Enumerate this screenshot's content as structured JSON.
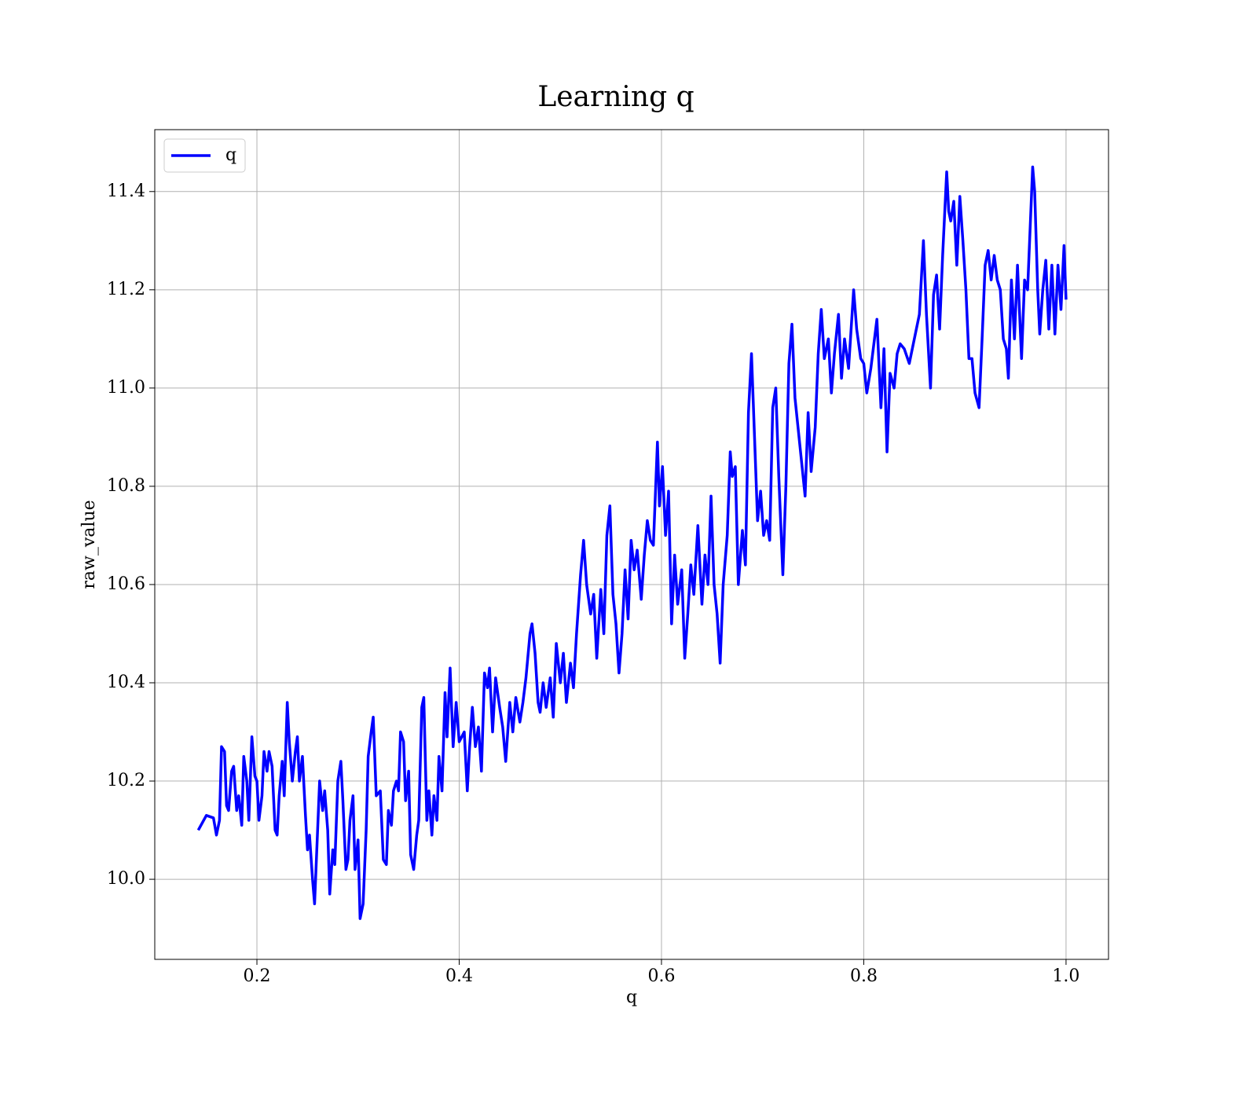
{
  "chart_data": {
    "type": "line",
    "title": "Learning q",
    "xlabel": "q",
    "ylabel": "raw_value",
    "xlim": [
      0.099,
      1.042
    ],
    "ylim": [
      9.837,
      11.526
    ],
    "xticks": [
      0.2,
      0.4,
      0.6,
      0.8,
      {
        "value": 1.0,
        "label": "1.0"
      }
    ],
    "yticks": [
      {
        "value": 10.0,
        "label": "10.0"
      },
      10.2,
      10.4,
      10.6,
      10.8,
      {
        "value": 11.0,
        "label": "11.0"
      },
      11.2,
      11.4
    ],
    "grid": true,
    "legend": "upper left",
    "x": [
      0.142,
      0.15,
      0.157,
      0.16,
      0.163,
      0.165,
      0.168,
      0.17,
      0.172,
      0.175,
      0.177,
      0.18,
      0.182,
      0.185,
      0.187,
      0.19,
      0.192,
      0.195,
      0.198,
      0.2,
      0.202,
      0.205,
      0.207,
      0.21,
      0.212,
      0.215,
      0.218,
      0.22,
      0.222,
      0.225,
      0.227,
      0.23,
      0.232,
      0.235,
      0.238,
      0.24,
      0.242,
      0.245,
      0.248,
      0.25,
      0.252,
      0.255,
      0.257,
      0.26,
      0.262,
      0.265,
      0.267,
      0.27,
      0.272,
      0.275,
      0.277,
      0.28,
      0.283,
      0.285,
      0.288,
      0.29,
      0.292,
      0.295,
      0.297,
      0.3,
      0.302,
      0.305,
      0.308,
      0.31,
      0.313,
      0.315,
      0.318,
      0.322,
      0.325,
      0.328,
      0.33,
      0.333,
      0.335,
      0.338,
      0.34,
      0.342,
      0.345,
      0.347,
      0.35,
      0.352,
      0.355,
      0.358,
      0.36,
      0.363,
      0.365,
      0.368,
      0.37,
      0.373,
      0.375,
      0.378,
      0.38,
      0.383,
      0.386,
      0.388,
      0.391,
      0.394,
      0.397,
      0.4,
      0.405,
      0.408,
      0.41,
      0.413,
      0.416,
      0.419,
      0.422,
      0.425,
      0.428,
      0.43,
      0.433,
      0.436,
      0.44,
      0.443,
      0.446,
      0.45,
      0.453,
      0.456,
      0.46,
      0.463,
      0.466,
      0.47,
      0.472,
      0.475,
      0.478,
      0.48,
      0.483,
      0.486,
      0.49,
      0.493,
      0.496,
      0.5,
      0.503,
      0.506,
      0.51,
      0.513,
      0.516,
      0.52,
      0.523,
      0.526,
      0.53,
      0.533,
      0.536,
      0.54,
      0.543,
      0.546,
      0.549,
      0.552,
      0.555,
      0.558,
      0.561,
      0.564,
      0.567,
      0.57,
      0.573,
      0.576,
      0.58,
      0.583,
      0.586,
      0.589,
      0.592,
      0.596,
      0.598,
      0.601,
      0.604,
      0.607,
      0.61,
      0.613,
      0.616,
      0.62,
      0.623,
      0.626,
      0.629,
      0.632,
      0.636,
      0.64,
      0.643,
      0.646,
      0.649,
      0.652,
      0.655,
      0.658,
      0.661,
      0.665,
      0.668,
      0.67,
      0.673,
      0.676,
      0.68,
      0.683,
      0.686,
      0.689,
      0.692,
      0.695,
      0.698,
      0.701,
      0.704,
      0.707,
      0.71,
      0.713,
      0.716,
      0.72,
      0.723,
      0.726,
      0.729,
      0.732,
      0.735,
      0.738,
      0.742,
      0.745,
      0.748,
      0.752,
      0.755,
      0.758,
      0.761,
      0.765,
      0.768,
      0.771,
      0.775,
      0.778,
      0.781,
      0.785,
      0.79,
      0.793,
      0.797,
      0.8,
      0.803,
      0.807,
      0.81,
      0.813,
      0.817,
      0.82,
      0.823,
      0.826,
      0.83,
      0.833,
      0.836,
      0.84,
      0.845,
      0.85,
      0.855,
      0.859,
      0.862,
      0.866,
      0.869,
      0.872,
      0.875,
      0.878,
      0.882,
      0.884,
      0.886,
      0.889,
      0.892,
      0.895,
      0.898,
      0.901,
      0.904,
      0.907,
      0.91,
      0.914,
      0.917,
      0.92,
      0.923,
      0.926,
      0.929,
      0.932,
      0.935,
      0.938,
      0.941,
      0.943,
      0.946,
      0.949,
      0.952,
      0.956,
      0.959,
      0.962,
      0.965,
      0.967,
      0.969,
      0.972,
      0.974,
      0.977,
      0.98,
      0.983,
      0.986,
      0.989,
      0.992,
      0.995,
      0.998,
      1.0
    ],
    "series": [
      {
        "name": "q",
        "color": "#0000ff",
        "values": [
          10.1,
          10.13,
          10.125,
          10.09,
          10.12,
          10.27,
          10.26,
          10.15,
          10.14,
          10.22,
          10.23,
          10.14,
          10.17,
          10.11,
          10.25,
          10.2,
          10.12,
          10.29,
          10.21,
          10.2,
          10.12,
          10.17,
          10.26,
          10.22,
          10.26,
          10.23,
          10.1,
          10.09,
          10.17,
          10.24,
          10.17,
          10.36,
          10.28,
          10.2,
          10.26,
          10.29,
          10.2,
          10.25,
          10.13,
          10.06,
          10.09,
          10.0,
          9.95,
          10.1,
          10.2,
          10.14,
          10.18,
          10.1,
          9.97,
          10.06,
          10.03,
          10.2,
          10.24,
          10.16,
          10.02,
          10.04,
          10.12,
          10.17,
          10.02,
          10.08,
          9.92,
          9.95,
          10.1,
          10.25,
          10.3,
          10.33,
          10.17,
          10.18,
          10.04,
          10.03,
          10.14,
          10.11,
          10.18,
          10.2,
          10.18,
          10.3,
          10.28,
          10.16,
          10.22,
          10.05,
          10.02,
          10.09,
          10.12,
          10.35,
          10.37,
          10.12,
          10.18,
          10.09,
          10.17,
          10.12,
          10.25,
          10.18,
          10.38,
          10.29,
          10.43,
          10.27,
          10.36,
          10.28,
          10.3,
          10.18,
          10.26,
          10.35,
          10.27,
          10.31,
          10.22,
          10.42,
          10.39,
          10.43,
          10.3,
          10.41,
          10.35,
          10.31,
          10.24,
          10.36,
          10.3,
          10.37,
          10.32,
          10.36,
          10.41,
          10.5,
          10.52,
          10.46,
          10.36,
          10.34,
          10.4,
          10.35,
          10.41,
          10.33,
          10.48,
          10.4,
          10.46,
          10.36,
          10.44,
          10.39,
          10.5,
          10.62,
          10.69,
          10.6,
          10.54,
          10.58,
          10.45,
          10.59,
          10.5,
          10.7,
          10.76,
          10.58,
          10.52,
          10.42,
          10.5,
          10.63,
          10.53,
          10.69,
          10.63,
          10.67,
          10.57,
          10.66,
          10.73,
          10.69,
          10.68,
          10.89,
          10.76,
          10.84,
          10.7,
          10.79,
          10.52,
          10.66,
          10.56,
          10.63,
          10.45,
          10.54,
          10.64,
          10.58,
          10.72,
          10.56,
          10.66,
          10.6,
          10.78,
          10.6,
          10.54,
          10.44,
          10.6,
          10.7,
          10.87,
          10.82,
          10.84,
          10.6,
          10.71,
          10.64,
          10.95,
          11.07,
          10.9,
          10.73,
          10.79,
          10.7,
          10.73,
          10.69,
          10.96,
          11.0,
          10.82,
          10.62,
          10.8,
          11.05,
          11.13,
          10.98,
          10.92,
          10.86,
          10.78,
          10.95,
          10.83,
          10.92,
          11.07,
          11.16,
          11.06,
          11.1,
          10.99,
          11.07,
          11.15,
          11.02,
          11.1,
          11.04,
          11.2,
          11.12,
          11.06,
          11.05,
          10.99,
          11.04,
          11.09,
          11.14,
          10.96,
          11.08,
          10.87,
          11.03,
          11.0,
          11.07,
          11.09,
          11.08,
          11.05,
          11.1,
          11.15,
          11.3,
          11.15,
          11.0,
          11.19,
          11.23,
          11.12,
          11.27,
          11.44,
          11.36,
          11.34,
          11.38,
          11.25,
          11.39,
          11.3,
          11.2,
          11.06,
          11.06,
          10.99,
          10.96,
          11.1,
          11.25,
          11.28,
          11.22,
          11.27,
          11.22,
          11.2,
          11.1,
          11.08,
          11.02,
          11.22,
          11.1,
          11.25,
          11.06,
          11.22,
          11.2,
          11.35,
          11.45,
          11.4,
          11.2,
          11.11,
          11.2,
          11.26,
          11.12,
          11.25,
          11.11,
          11.25,
          11.16,
          11.29,
          11.18
        ]
      }
    ]
  }
}
